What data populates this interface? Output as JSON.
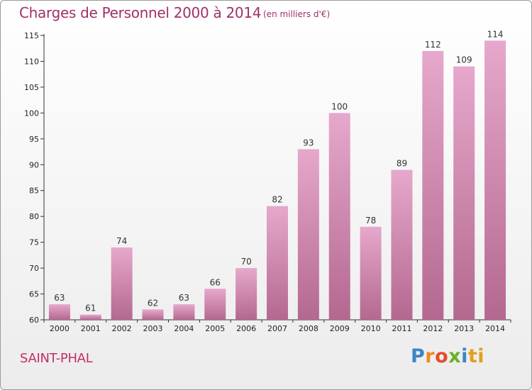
{
  "header": {
    "title": "Charges de Personnel 2000 à 2014",
    "subtitle": "(en milliers d'€)"
  },
  "footer": {
    "place": "SAINT-PHAL",
    "logo": [
      "P",
      "r",
      "o",
      "x",
      "i",
      "ti"
    ]
  },
  "colors": {
    "bar_top": "#e6a8cc",
    "bar_bottom": "#b4688f",
    "title": "#a0306a"
  },
  "chart_data": {
    "type": "bar",
    "title": "Charges de Personnel 2000 à 2014",
    "subtitle": "(en milliers d'€)",
    "xlabel": "",
    "ylabel": "",
    "categories": [
      "2000",
      "2001",
      "2002",
      "2003",
      "2004",
      "2005",
      "2006",
      "2007",
      "2008",
      "2009",
      "2010",
      "2011",
      "2012",
      "2013",
      "2014"
    ],
    "values": [
      63,
      61,
      74,
      62,
      63,
      66,
      70,
      82,
      93,
      100,
      78,
      89,
      112,
      109,
      114
    ],
    "ylim": [
      60,
      115
    ],
    "yticks": [
      60,
      65,
      70,
      75,
      80,
      85,
      90,
      95,
      100,
      105,
      110,
      115
    ],
    "grid": false,
    "legend": "none"
  }
}
